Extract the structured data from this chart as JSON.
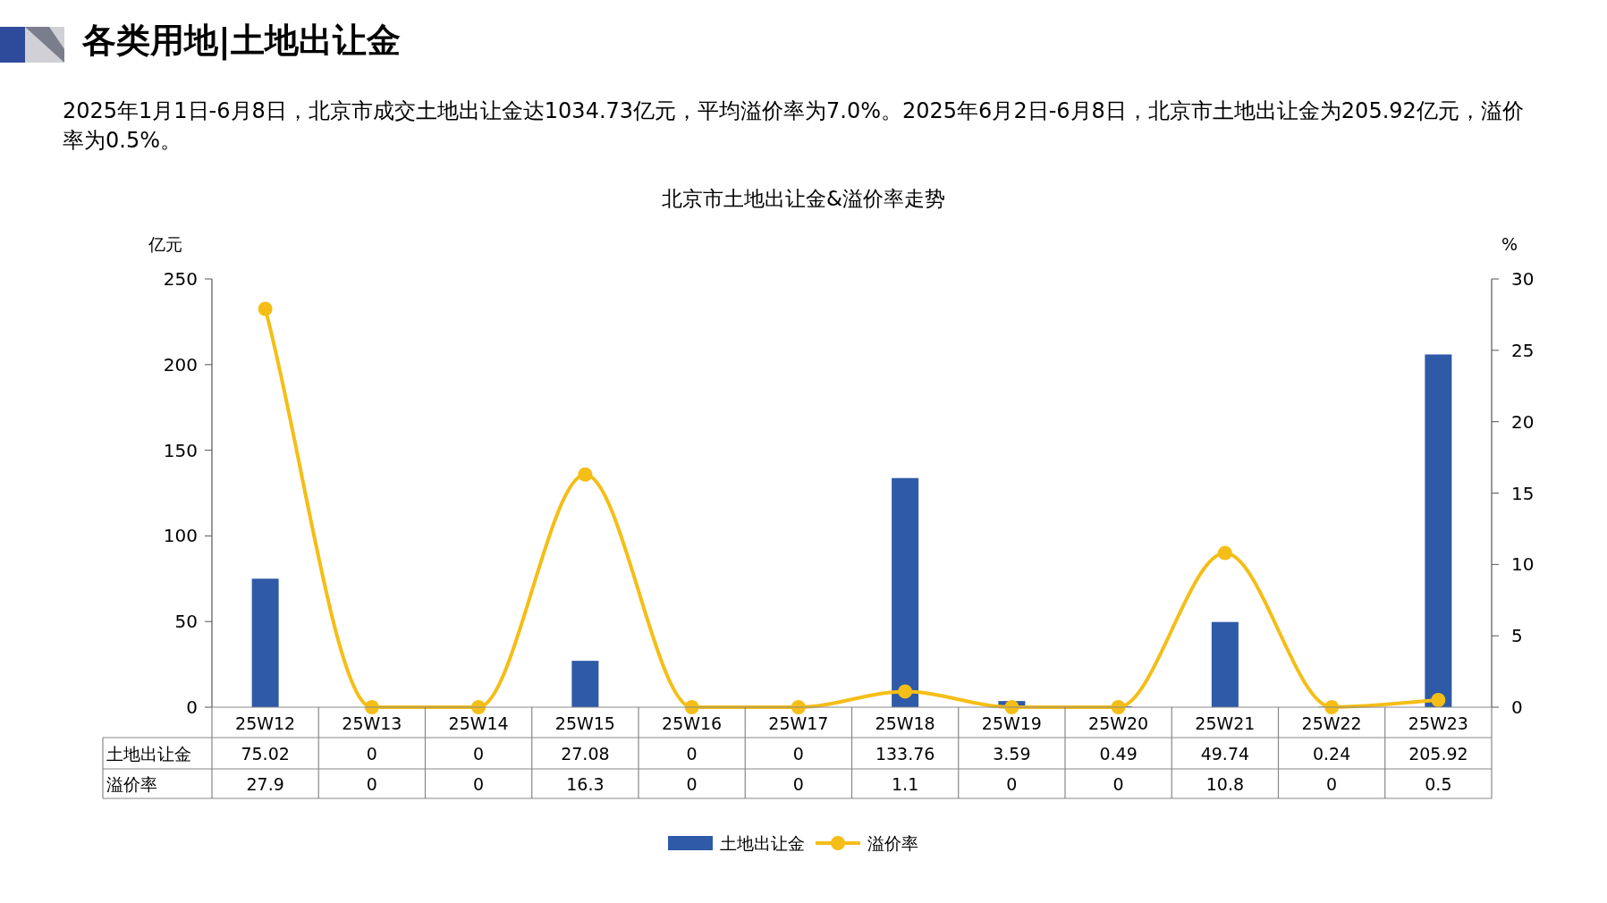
{
  "chart_data": {
    "type": "bar",
    "title": "北京市土地出让金&溢价率走势",
    "annotations": [
      "各类用地|土地出让金",
      "2025年1月1日-6月8日，北京市成交土地出让金达1034.73亿元，平均溢价率为7.0%。2025年6月2日-6月8日，北京市土地出让金为205.92亿元，溢价率为0.5%。"
    ],
    "ylabel": "亿元",
    "y2label": "%",
    "categories": [
      "25W12",
      "25W13",
      "25W14",
      "25W15",
      "25W16",
      "25W17",
      "25W18",
      "25W19",
      "25W20",
      "25W21",
      "25W22",
      "25W23"
    ],
    "series": [
      {
        "name": "土地出让金",
        "color": "#2e5aa8",
        "values": [
          75.02,
          0,
          0,
          27.08,
          0,
          0,
          133.76,
          3.59,
          0.49,
          49.74,
          0.24,
          205.92
        ]
      },
      {
        "name": "溢价率",
        "type": "line",
        "axis": "y2",
        "color": "#f5be16",
        "marker": "circle",
        "values": [
          27.9,
          0,
          0,
          16.3,
          0,
          0,
          1.1,
          0,
          0,
          10.8,
          0,
          0.5
        ]
      }
    ],
    "ylim": [
      0,
      250
    ],
    "yticks": [
      0,
      50,
      100,
      150,
      200,
      250
    ],
    "y2lim": [
      0,
      30
    ],
    "y2ticks": [
      0,
      5,
      10,
      15,
      20,
      25,
      30
    ],
    "data_labels": true,
    "grid": false,
    "legend": "bottom"
  }
}
